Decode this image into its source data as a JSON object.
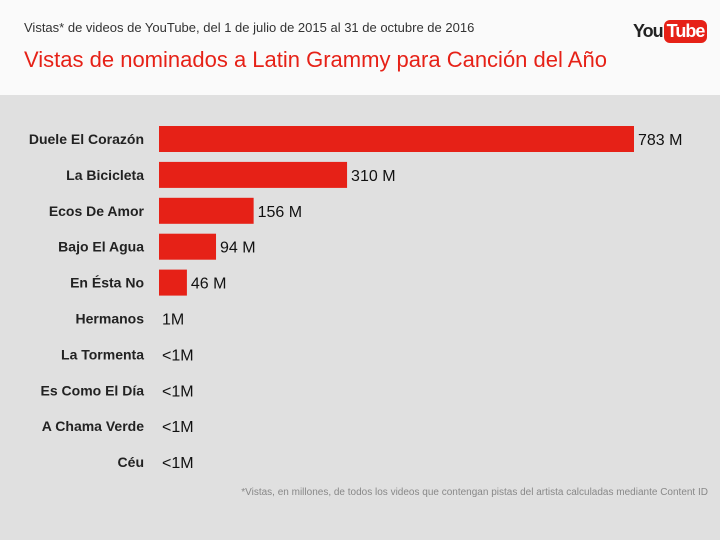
{
  "header": {
    "subtitle": "Vistas* de videos de YouTube, del 1 de julio de 2015 al 31 de octubre de 2016",
    "logo": {
      "you": "You",
      "tube": "Tube"
    }
  },
  "footnote": "*Vistas, en millones, de todos los videos que contengan pistas del artista calculadas mediante Content ID",
  "colors": {
    "bar": "#e62117",
    "background": "#e0e0e0",
    "title": "#e62117"
  },
  "chart_data": {
    "type": "bar",
    "orientation": "horizontal",
    "title": "Vistas de nominados a Latin Grammy para Canción del Año",
    "categories": [
      "Duele El Corazón",
      "La Bicicleta",
      "Ecos De Amor",
      "Bajo El Agua",
      "En Ésta No",
      "Hermanos",
      "La Tormenta",
      "Es Como El Día",
      "A Chama Verde",
      "Céu"
    ],
    "values": [
      783,
      310,
      156,
      94,
      46,
      1,
      0,
      0,
      0,
      0
    ],
    "labels": [
      "783 M",
      "310 M",
      "156 M",
      "94 M",
      "46 M",
      "1M",
      "<1M",
      "<1M",
      "<1M",
      "<1M"
    ],
    "unit": "M",
    "xlim": [
      0,
      783
    ],
    "grid": false
  }
}
